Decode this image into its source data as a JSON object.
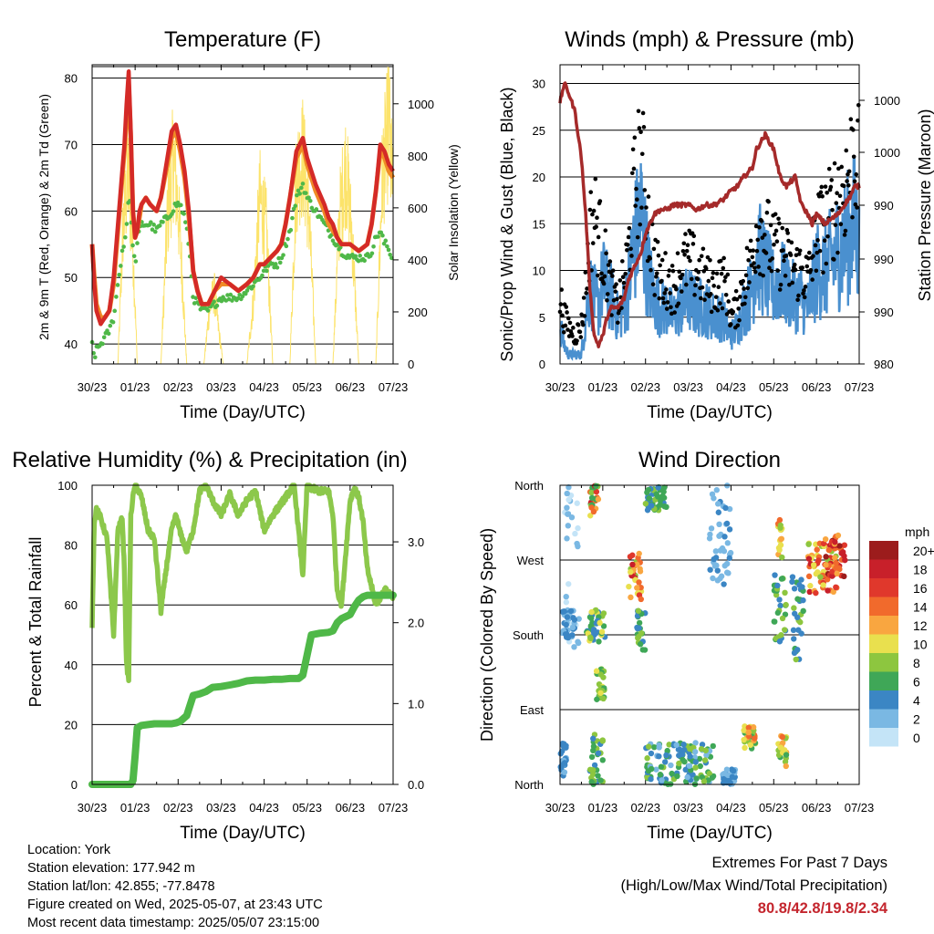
{
  "x_ticks": [
    "30/23",
    "01/23",
    "02/23",
    "03/23",
    "04/23",
    "05/23",
    "06/23",
    "07/23"
  ],
  "x_label": "Time (Day/UTC)",
  "colors": {
    "temp_red": "#d42a27",
    "temp_orange": "#f08a26",
    "dewpoint_green": "#4fb848",
    "solar_yellow": "#fce36b",
    "wind_blue": "#4a90cf",
    "gust_black": "#000000",
    "pressure_maroon": "#a52a2a",
    "rh_light_green": "#8cc84b",
    "rain_green": "#4fb848"
  },
  "info": {
    "location": "Location: York",
    "elevation": "Station elevation: 177.942 m",
    "latlon": "Station lat/lon: 42.855; -77.8478",
    "created": "Figure created on Wed, 2025-05-07, at 23:43 UTC",
    "recent": "Most recent data timestamp: 2025/05/07 23:15:00"
  },
  "extremes": {
    "title": "Extremes For Past 7 Days",
    "subtitle": "(High/Low/Max Wind/Total Precipitation)",
    "value": "80.8/42.8/19.8/2.34"
  },
  "chart_data": [
    {
      "type": "line",
      "title": "Temperature (F)",
      "xlabel": "Time (Day/UTC)",
      "ylabel": "2m & 9m T (Red, Orange) & 2m Td (Green)",
      "ylabel_right": "Solar Insolation (Yellow)",
      "ylim": [
        37,
        82
      ],
      "yticks": [
        40,
        50,
        60,
        70,
        80
      ],
      "ylim_right": [
        0,
        1150
      ],
      "yticks_right": [
        0,
        200,
        400,
        600,
        800,
        1000
      ],
      "x": [
        0,
        0.05,
        0.1,
        0.2,
        0.3,
        0.4,
        0.5,
        0.6,
        0.7,
        0.75,
        0.8,
        0.85,
        0.9,
        0.95,
        1.0,
        1.05,
        1.1,
        1.15,
        1.25,
        1.35,
        1.5,
        1.6,
        1.75,
        1.85,
        1.95,
        2.05,
        2.15,
        2.25,
        2.35,
        2.45,
        2.55,
        2.7,
        2.85,
        3.0,
        3.2,
        3.4,
        3.6,
        3.75,
        3.9,
        4.0,
        4.15,
        4.3,
        4.4,
        4.5,
        4.6,
        4.75,
        4.9,
        5.0,
        5.2,
        5.4,
        5.5,
        5.6,
        5.7,
        5.8,
        6.0,
        6.2,
        6.4,
        6.5,
        6.6,
        6.7,
        6.8,
        6.85,
        6.9,
        7.0
      ],
      "series": [
        {
          "name": "2m T",
          "values": [
            55,
            49,
            45,
            43,
            44,
            45,
            50,
            58,
            66,
            70,
            76,
            81,
            72,
            60,
            56,
            57,
            60,
            61,
            62,
            61,
            60,
            62,
            68,
            72,
            73,
            70,
            66,
            60,
            51,
            48,
            46,
            46,
            48,
            50,
            49,
            48,
            49,
            50,
            52,
            52,
            53,
            54,
            55,
            58,
            62,
            69,
            71,
            68,
            64,
            61,
            59,
            58,
            56,
            55,
            55,
            54,
            55,
            58,
            63,
            70,
            69,
            68,
            67,
            66
          ]
        },
        {
          "name": "9m T",
          "values": [
            55,
            50,
            46,
            44,
            44,
            45,
            49,
            57,
            65,
            69,
            74,
            79,
            71,
            60,
            56,
            57,
            59,
            61,
            62,
            61,
            60,
            62,
            67,
            71,
            72,
            69,
            65,
            59,
            51,
            48,
            46,
            46,
            48,
            49,
            49,
            48,
            49,
            50,
            52,
            52,
            53,
            54,
            55,
            58,
            62,
            68,
            70,
            67,
            63,
            60,
            58,
            57,
            56,
            55,
            55,
            54,
            55,
            58,
            63,
            69,
            68,
            67,
            66,
            65
          ]
        },
        {
          "name": "2m Td",
          "values": [
            40,
            38,
            39,
            40,
            41,
            42,
            44,
            49,
            54,
            55,
            58,
            62,
            60,
            54,
            52,
            55,
            57,
            58,
            58,
            58,
            57,
            58,
            59,
            60,
            61,
            61,
            59,
            55,
            47,
            46,
            45,
            45,
            46,
            47,
            47,
            47,
            48,
            49,
            50,
            51,
            52,
            52,
            53,
            55,
            57,
            62,
            64,
            62,
            60,
            58,
            57,
            56,
            55,
            54,
            53,
            53,
            53,
            54,
            56,
            57,
            55,
            55,
            54,
            53
          ]
        },
        {
          "name": "Solar",
          "axis": "right",
          "x": [
            0.6,
            0.72,
            0.84,
            0.95,
            1.05,
            1.6,
            1.75,
            1.9,
            2.05,
            2.2,
            2.6,
            2.72,
            2.84,
            2.95,
            3.05,
            3.6,
            3.75,
            3.9,
            4.05,
            4.2,
            4.6,
            4.75,
            4.9,
            5.05,
            5.2,
            5.6,
            5.75,
            5.9,
            6.05,
            6.2,
            6.6,
            6.75,
            6.9,
            7.0
          ],
          "values": [
            0,
            650,
            900,
            550,
            0,
            0,
            700,
            1000,
            600,
            0,
            0,
            250,
            350,
            150,
            0,
            0,
            300,
            800,
            650,
            0,
            0,
            900,
            1000,
            700,
            0,
            0,
            700,
            950,
            600,
            0,
            0,
            900,
            1150,
            800
          ]
        }
      ]
    },
    {
      "type": "line",
      "title": "Winds (mph) & Pressure (mb)",
      "xlabel": "Time (Day/UTC)",
      "ylabel": "Sonic/Prop Wind & Gust (Blue, Black)",
      "ylabel_right": "Station Pressure (Maroon)",
      "ylim": [
        0,
        32
      ],
      "yticks": [
        0,
        5,
        10,
        15,
        20,
        25,
        30
      ],
      "yticks_right_labels": [
        "980",
        "990",
        "990",
        "990",
        "1000",
        "1000"
      ],
      "x": [
        0,
        0.1,
        0.2,
        0.35,
        0.5,
        0.6,
        0.7,
        0.8,
        0.9,
        1.0,
        1.1,
        1.2,
        1.35,
        1.5,
        1.6,
        1.7,
        1.8,
        1.9,
        2.0,
        2.1,
        2.2,
        2.35,
        2.5,
        2.65,
        2.8,
        3.0,
        3.2,
        3.4,
        3.6,
        3.8,
        3.9,
        4.0,
        4.15,
        4.3,
        4.5,
        4.6,
        4.8,
        5.0,
        5.15,
        5.3,
        5.5,
        5.65,
        5.8,
        5.9,
        6.0,
        6.2,
        6.35,
        6.5,
        6.65,
        6.8,
        6.9,
        7.0
      ],
      "series": [
        {
          "name": "Wind",
          "values": [
            4,
            2,
            1,
            1,
            1,
            5,
            8,
            7,
            6,
            9,
            8,
            7,
            5,
            6,
            8,
            12,
            14,
            16,
            12,
            9,
            7,
            6,
            6,
            5,
            6,
            7,
            6,
            6,
            5,
            5,
            4,
            3,
            4,
            6,
            8,
            12,
            10,
            8,
            9,
            8,
            7,
            7,
            6,
            8,
            10,
            10,
            11,
            12,
            13,
            14,
            15,
            12
          ]
        },
        {
          "name": "Gust",
          "values": [
            7,
            5,
            4,
            3,
            4,
            8,
            14,
            16,
            14,
            12,
            10,
            8,
            6,
            9,
            12,
            17,
            20,
            22,
            18,
            14,
            11,
            9,
            9,
            8,
            10,
            11,
            10,
            9,
            8,
            9,
            8,
            5,
            6,
            9,
            11,
            15,
            14,
            12,
            12,
            11,
            10,
            10,
            9,
            11,
            14,
            15,
            16,
            18,
            19,
            21,
            24,
            20
          ]
        },
        {
          "name": "Pressure",
          "axis": "right",
          "values": [
            28,
            30,
            29,
            27,
            22,
            16,
            8,
            3,
            2,
            3,
            5,
            6,
            6,
            7,
            9,
            10,
            11,
            12,
            14,
            15,
            16,
            16.5,
            16.5,
            17,
            17,
            17,
            16.5,
            17,
            17,
            17.5,
            18,
            18.5,
            19,
            20,
            21,
            23,
            24.5,
            23,
            20,
            19,
            20,
            17,
            16,
            15,
            16,
            15,
            15.5,
            16,
            17,
            18,
            19,
            19
          ]
        }
      ]
    },
    {
      "type": "line",
      "title": "Relative Humidity (%) & Precipitation (in)",
      "xlabel": "Time (Day/UTC)",
      "ylabel": "Percent & Total Rainfall",
      "ylim": [
        0,
        100
      ],
      "yticks": [
        0,
        20,
        40,
        60,
        80,
        100
      ],
      "ylim_right": [
        0,
        3.7
      ],
      "yticks_right": [
        0.0,
        1.0,
        2.0,
        3.0
      ],
      "x": [
        0,
        0.05,
        0.1,
        0.2,
        0.35,
        0.5,
        0.6,
        0.7,
        0.75,
        0.8,
        0.85,
        0.9,
        0.95,
        1.0,
        1.05,
        1.15,
        1.3,
        1.45,
        1.6,
        1.75,
        1.85,
        1.95,
        2.05,
        2.2,
        2.35,
        2.5,
        2.65,
        2.8,
        3.0,
        3.2,
        3.4,
        3.6,
        3.8,
        4.0,
        4.2,
        4.4,
        4.6,
        4.7,
        4.8,
        4.9,
        5.0,
        5.1,
        5.3,
        5.5,
        5.6,
        5.7,
        5.8,
        6.0,
        6.1,
        6.2,
        6.3,
        6.4,
        6.6,
        6.8,
        7.0
      ],
      "series": [
        {
          "name": "RH",
          "values": [
            53,
            88,
            92,
            89,
            82,
            50,
            85,
            89,
            72,
            40,
            35,
            90,
            96,
            100,
            99,
            96,
            85,
            82,
            58,
            75,
            85,
            90,
            84,
            78,
            85,
            98,
            100,
            95,
            90,
            97,
            90,
            95,
            98,
            85,
            90,
            94,
            98,
            100,
            85,
            70,
            100,
            99,
            98,
            98,
            90,
            65,
            60,
            95,
            99,
            96,
            88,
            72,
            60,
            65,
            63
          ]
        },
        {
          "name": "Rain",
          "axis": "right",
          "values": [
            0,
            0,
            0,
            0,
            0,
            0,
            0,
            0,
            0,
            0,
            0,
            0,
            0.05,
            0.35,
            0.7,
            0.73,
            0.74,
            0.75,
            0.75,
            0.75,
            0.75,
            0.76,
            0.78,
            0.85,
            1.1,
            1.12,
            1.15,
            1.2,
            1.21,
            1.23,
            1.25,
            1.28,
            1.29,
            1.29,
            1.3,
            1.3,
            1.31,
            1.31,
            1.31,
            1.35,
            1.6,
            1.85,
            1.87,
            1.88,
            1.9,
            2.0,
            2.05,
            2.1,
            2.2,
            2.28,
            2.32,
            2.34,
            2.34,
            2.34,
            2.34
          ]
        }
      ]
    },
    {
      "type": "scatter",
      "title": "Wind Direction",
      "xlabel": "Time (Day/UTC)",
      "ylabel": "Direction (Colored By Speed)",
      "ylim": [
        0,
        360
      ],
      "yticks": [
        0,
        90,
        180,
        270,
        360
      ],
      "ytick_labels": [
        "North",
        "East",
        "South",
        "West",
        "North"
      ],
      "legend_unit": "mph",
      "legend": [
        {
          "label": "20+",
          "color": "#9c1c1c"
        },
        {
          "label": "18",
          "color": "#c8202a"
        },
        {
          "label": "16",
          "color": "#e0382c"
        },
        {
          "label": "14",
          "color": "#f16a2c"
        },
        {
          "label": "12",
          "color": "#f9a640"
        },
        {
          "label": "10",
          "color": "#e9e04e"
        },
        {
          "label": "8",
          "color": "#8dc63f"
        },
        {
          "label": "6",
          "color": "#3fa757"
        },
        {
          "label": "4",
          "color": "#3b86c4"
        },
        {
          "label": "2",
          "color": "#7ab8e3"
        },
        {
          "label": "0",
          "color": "#c4e4f7"
        }
      ],
      "clusters": [
        {
          "x": [
            0.0,
            0.15
          ],
          "y": [
            10,
            50
          ],
          "speed": [
            2,
            5
          ]
        },
        {
          "x": [
            0.1,
            0.45
          ],
          "y": [
            160,
            360
          ],
          "speed": [
            0,
            3
          ]
        },
        {
          "x": [
            0.05,
            0.35
          ],
          "y": [
            175,
            210
          ],
          "speed": [
            2,
            5
          ]
        },
        {
          "x": [
            0.6,
            1.05
          ],
          "y": [
            170,
            210
          ],
          "speed": [
            3,
            10
          ]
        },
        {
          "x": [
            0.7,
            0.9
          ],
          "y": [
            320,
            360
          ],
          "speed": [
            4,
            18
          ]
        },
        {
          "x": [
            0.7,
            1.0
          ],
          "y": [
            0,
            60
          ],
          "speed": [
            3,
            9
          ]
        },
        {
          "x": [
            0.85,
            1.05
          ],
          "y": [
            100,
            140
          ],
          "speed": [
            5,
            10
          ]
        },
        {
          "x": [
            1.6,
            1.9
          ],
          "y": [
            220,
            280
          ],
          "speed": [
            8,
            18
          ]
        },
        {
          "x": [
            1.8,
            2.0
          ],
          "y": [
            160,
            210
          ],
          "speed": [
            3,
            8
          ]
        },
        {
          "x": [
            2.0,
            2.5
          ],
          "y": [
            330,
            360
          ],
          "speed": [
            4,
            8
          ]
        },
        {
          "x": [
            2.0,
            3.6
          ],
          "y": [
            0,
            50
          ],
          "speed": [
            2,
            8
          ]
        },
        {
          "x": [
            3.5,
            4.0
          ],
          "y": [
            240,
            360
          ],
          "speed": [
            1,
            4
          ]
        },
        {
          "x": [
            3.8,
            4.1
          ],
          "y": [
            0,
            20
          ],
          "speed": [
            2,
            5
          ]
        },
        {
          "x": [
            4.3,
            4.6
          ],
          "y": [
            40,
            70
          ],
          "speed": [
            5,
            14
          ]
        },
        {
          "x": [
            5.0,
            5.3
          ],
          "y": [
            170,
            260
          ],
          "speed": [
            4,
            8
          ]
        },
        {
          "x": [
            5.1,
            5.2
          ],
          "y": [
            270,
            320
          ],
          "speed": [
            8,
            14
          ]
        },
        {
          "x": [
            5.4,
            5.7
          ],
          "y": [
            150,
            250
          ],
          "speed": [
            3,
            8
          ]
        },
        {
          "x": [
            5.1,
            5.3
          ],
          "y": [
            20,
            60
          ],
          "speed": [
            6,
            14
          ]
        },
        {
          "x": [
            5.8,
            6.5
          ],
          "y": [
            230,
            290
          ],
          "speed": [
            8,
            18
          ]
        },
        {
          "x": [
            6.2,
            6.7
          ],
          "y": [
            250,
            300
          ],
          "speed": [
            12,
            20
          ]
        }
      ]
    }
  ]
}
